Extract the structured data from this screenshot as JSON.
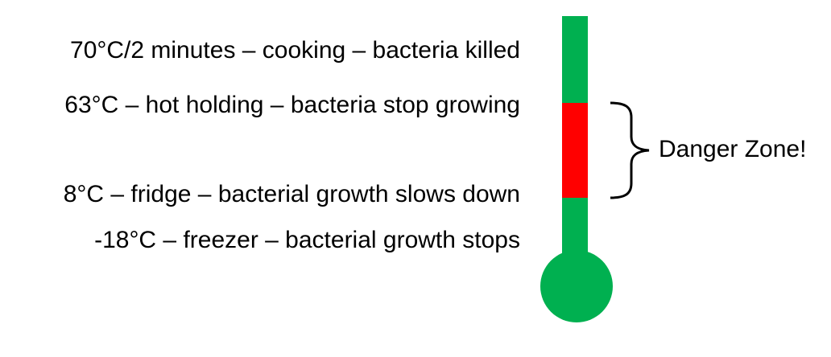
{
  "labels": [
    "70°C/2 minutes – cooking – bacteria killed",
    "63°C – hot holding – bacteria stop growing",
    "8°C – fridge – bacterial growth slows down",
    "-18°C – freezer – bacterial growth stops"
  ],
  "danger_zone_label": "Danger Zone!",
  "colors": {
    "safe": "#00b050",
    "danger": "#ff0000",
    "text": "#000000"
  }
}
